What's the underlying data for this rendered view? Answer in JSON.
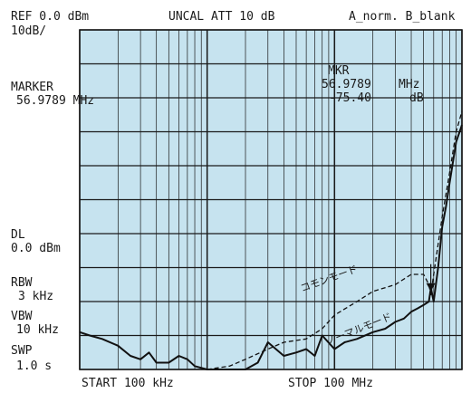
{
  "header": {
    "ref": "REF 0.0 dBm",
    "scale": "10dB/",
    "uncal_att": "UNCAL ATT 10 dB",
    "trace_mode": "A_norm. B_blank"
  },
  "left_panel": {
    "marker_title": "MARKER",
    "marker_value": "56.9789 MHz",
    "dl_title": "DL",
    "dl_value": "0.0 dBm",
    "rbw_title": "RBW",
    "rbw_value": "3 kHz",
    "vbw_title": "VBW",
    "vbw_value": "10 kHz",
    "swp_title": "SWP",
    "swp_value": "1.0 s"
  },
  "marker_readout": {
    "title": "MKR",
    "freq": "56.9789",
    "freq_unit": "MHz",
    "level": "-75.40",
    "level_unit": "dB"
  },
  "footer": {
    "start": "START 100 kHz",
    "stop": "STOP 100 MHz"
  },
  "annotations": {
    "common_mode": "コモンモード",
    "normal_mode": "ノーマルモード"
  },
  "colors": {
    "plot_bg": "#c6e3ef",
    "grid": "#1a1a1a",
    "trace": "#111111"
  },
  "chart_data": {
    "type": "line",
    "x_scale": "log",
    "xlim": [
      0.1,
      100
    ],
    "ylim": [
      -100,
      0
    ],
    "grid": true,
    "series": [
      {
        "name": "ノーマルモード",
        "style": "solid",
        "x": [
          0.1,
          0.12,
          0.15,
          0.2,
          0.25,
          0.3,
          0.35,
          0.4,
          0.5,
          0.6,
          0.7,
          0.8,
          1,
          1.2,
          1.5,
          2,
          2.5,
          3,
          4,
          5,
          6,
          7,
          8,
          10,
          12,
          15,
          20,
          25,
          30,
          35,
          40,
          45,
          50,
          55,
          57,
          60,
          65,
          70,
          75,
          80,
          90,
          100
        ],
        "y": [
          -89,
          -90,
          -91,
          -93,
          -96,
          -97,
          -95,
          -98,
          -98,
          -96,
          -97,
          -99,
          -100,
          -100,
          -100,
          -100,
          -98,
          -92,
          -96,
          -95,
          -94,
          -96,
          -90,
          -94,
          -92,
          -91,
          -89,
          -88,
          -86,
          -85,
          -83,
          -82,
          -81,
          -80,
          -76,
          -80,
          -70,
          -58,
          -52,
          -45,
          -33,
          -28
        ]
      },
      {
        "name": "コモンモード",
        "style": "dashed",
        "x": [
          1,
          1.5,
          2,
          3,
          4,
          6,
          8,
          10,
          15,
          20,
          30,
          40,
          50,
          55,
          57,
          60,
          70,
          80,
          90,
          100
        ],
        "y": [
          -100,
          -99,
          -97,
          -94,
          -92,
          -91,
          -88,
          -84,
          -80,
          -77,
          -75,
          -72,
          -72,
          -75,
          -78,
          -72,
          -55,
          -42,
          -30,
          -24
        ]
      }
    ],
    "marker": {
      "x": 56.9789,
      "y": -75.4
    }
  }
}
